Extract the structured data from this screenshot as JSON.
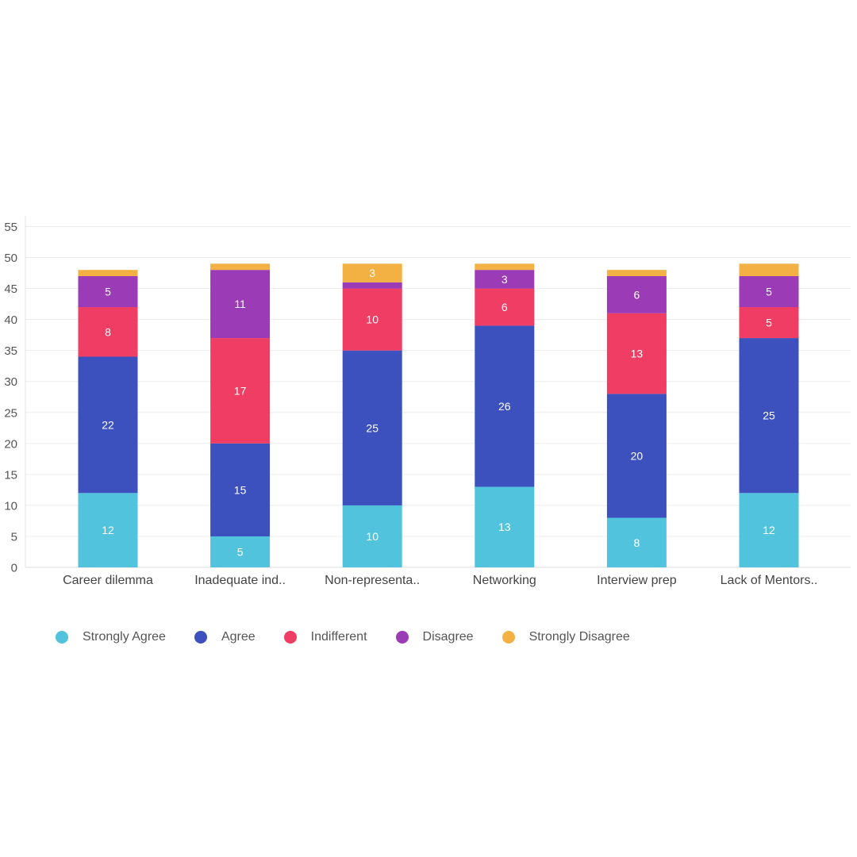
{
  "chart_data": {
    "type": "bar",
    "stacked": true,
    "categories": [
      "Career dilemma",
      "Inadequate ind..",
      "Non-representa..",
      "Networking",
      "Interview prep",
      "Lack of Mentors.."
    ],
    "series": [
      {
        "name": "Strongly Agree",
        "color": "#52c3dc",
        "values": [
          12,
          5,
          10,
          13,
          8,
          12
        ]
      },
      {
        "name": "Agree",
        "color": "#3c51bd",
        "values": [
          22,
          15,
          25,
          26,
          20,
          25
        ]
      },
      {
        "name": "Indifferent",
        "color": "#ef3d64",
        "values": [
          8,
          17,
          10,
          6,
          13,
          5
        ]
      },
      {
        "name": "Disagree",
        "color": "#9b3bb5",
        "values": [
          5,
          11,
          1,
          3,
          6,
          5
        ]
      },
      {
        "name": "Strongly Disagree",
        "color": "#f2b142",
        "values": [
          1,
          1,
          3,
          1,
          1,
          2
        ]
      }
    ],
    "ylim": [
      0,
      55
    ],
    "yticks": [
      0,
      5,
      10,
      15,
      20,
      25,
      30,
      35,
      40,
      45,
      50,
      55
    ],
    "grid": true,
    "legend_position": "bottom-left",
    "title": "",
    "xlabel": "",
    "ylabel": ""
  }
}
